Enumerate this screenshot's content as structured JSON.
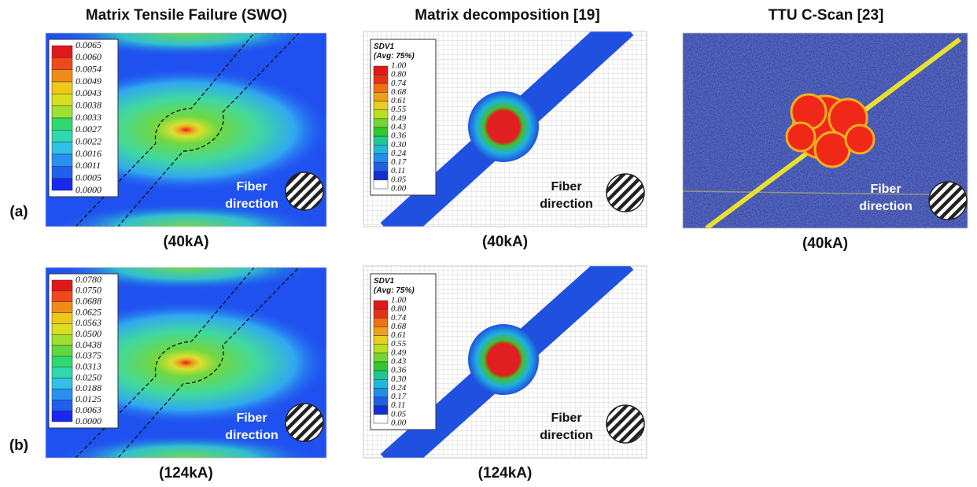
{
  "column_titles": [
    "Matrix Tensile Failure (SWO)",
    "Matrix decomposition [19]",
    "TTU C-Scan [23]"
  ],
  "row_labels": [
    "(a)",
    "(b)"
  ],
  "panels": [
    {
      "caption": "(40kA)",
      "annotation": [
        "Fiber",
        "direction"
      ],
      "legend": {
        "labels": [
          "0.0065",
          "0.0060",
          "0.0054",
          "0.0049",
          "0.0043",
          "0.0038",
          "0.0033",
          "0.0027",
          "0.0022",
          "0.0016",
          "0.0011",
          "0.0005",
          "0.0000"
        ]
      }
    },
    {
      "caption": "(40kA)",
      "annotation": [
        "Fiber",
        "direction"
      ],
      "legend": {
        "title": "SDV1",
        "subtitle": "(Avg: 75%)",
        "labels": [
          "1.00",
          "0.80",
          "0.74",
          "0.68",
          "0.61",
          "0.55",
          "0.49",
          "0.43",
          "0.36",
          "0.30",
          "0.24",
          "0.17",
          "0.11",
          "0.05",
          "0.00"
        ]
      }
    },
    {
      "caption": "(40kA)",
      "annotation": [
        "Fiber",
        "direction"
      ]
    },
    {
      "caption": "(124kA)",
      "annotation": [
        "Fiber",
        "direction"
      ],
      "legend": {
        "labels": [
          "0.0780",
          "0.0750",
          "0.0688",
          "0.0625",
          "0.0563",
          "0.0500",
          "0.0438",
          "0.0375",
          "0.0313",
          "0.0250",
          "0.0188",
          "0.0125",
          "0.0063",
          "0.0000"
        ]
      }
    },
    {
      "caption": "(124kA)",
      "annotation": [
        "Fiber",
        "direction"
      ],
      "legend": {
        "title": "SDV1",
        "subtitle": "(Avg: 75%)",
        "labels": [
          "1.00",
          "0.80",
          "0.74",
          "0.68",
          "0.61",
          "0.55",
          "0.49",
          "0.43",
          "0.36",
          "0.30",
          "0.24",
          "0.17",
          "0.11",
          "0.05",
          "0.00"
        ]
      }
    }
  ]
}
